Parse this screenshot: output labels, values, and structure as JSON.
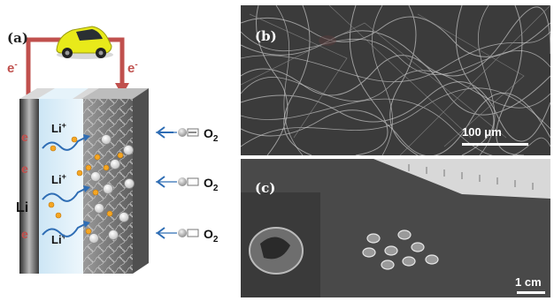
{
  "panel_a": {
    "label": "(a)",
    "electron_left": "e",
    "electron_right": "e",
    "electron_sup": "-",
    "electrons": [
      "e",
      "e",
      "e"
    ],
    "li_label": "Li",
    "li_ions": [
      "Li",
      "Li",
      "Li"
    ],
    "ion_sup": "+",
    "oxygen": [
      "O",
      "O",
      "O"
    ],
    "oxygen_sub": "2",
    "colors": {
      "wire": "#c0504d",
      "electrolyte": "#d7ecf7",
      "electron": "#c0504d",
      "ion_wave": "#2e6db4"
    }
  },
  "panel_b": {
    "label": "(b)",
    "scalebar": "100 μm"
  },
  "panel_c": {
    "label": "(c)",
    "scalebar": "1 cm"
  }
}
